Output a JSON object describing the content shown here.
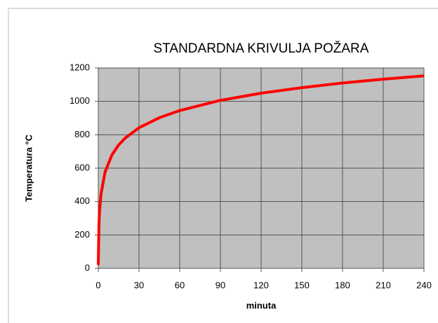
{
  "chart_data": {
    "type": "line",
    "title": "STANDARDNA KRIVULJA POŽARA",
    "x_label": "minuta",
    "y_label": "Temperatura °C",
    "x": [
      0,
      0.5,
      1,
      2,
      5,
      10,
      15,
      20,
      30,
      45,
      60,
      90,
      120,
      150,
      180,
      210,
      240
    ],
    "series": [
      {
        "name": "Temperatura",
        "color": "#ff0000",
        "values": [
          20,
          261,
          349,
          444,
          576,
          678,
          739,
          781,
          842,
          902,
          945,
          1006,
          1049,
          1082,
          1110,
          1133,
          1153
        ]
      }
    ],
    "xlim": [
      0,
      240
    ],
    "xticks": [
      0,
      30,
      60,
      90,
      120,
      150,
      180,
      210,
      240
    ],
    "ylim": [
      0,
      1200
    ],
    "yticks": [
      0,
      200,
      400,
      600,
      800,
      1000,
      1200
    ],
    "grid": true
  }
}
